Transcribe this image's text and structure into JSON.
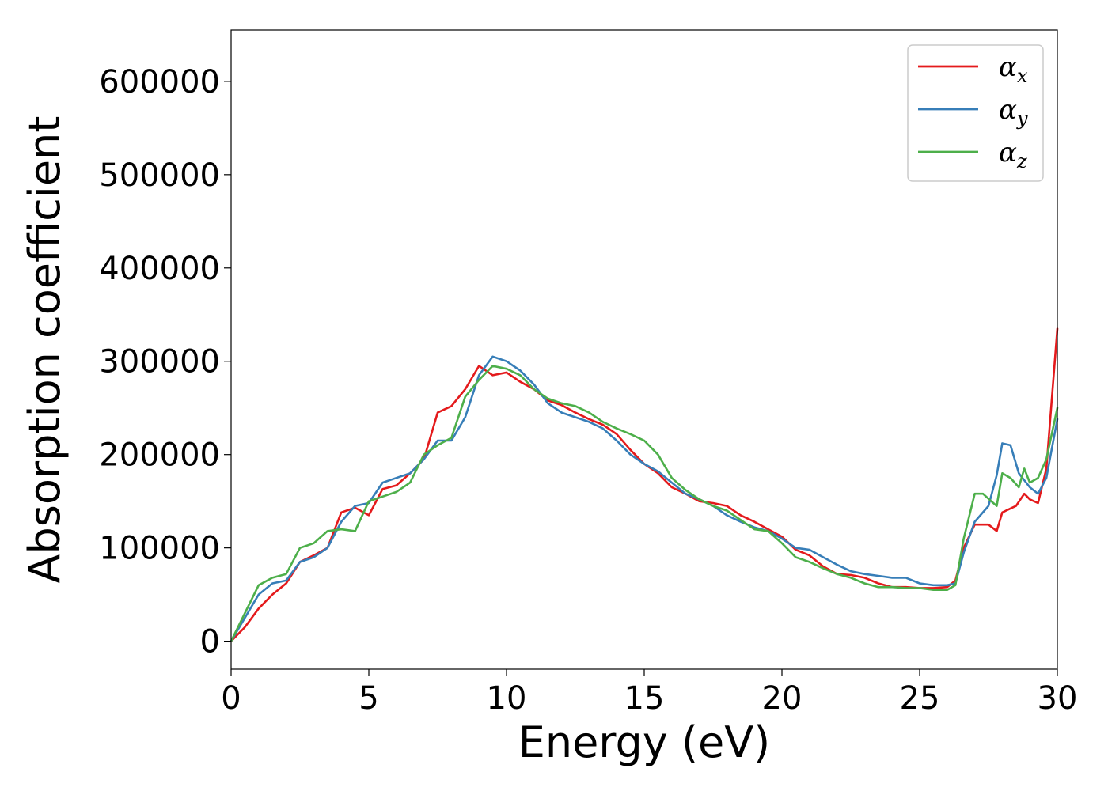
{
  "chart_data": {
    "type": "line",
    "title": "",
    "xlabel": "Energy (eV)",
    "ylabel": "Absorption coefficient",
    "xlim": [
      0,
      30
    ],
    "ylim": [
      -30000,
      655000
    ],
    "xticks": [
      0,
      5,
      10,
      15,
      20,
      25,
      30
    ],
    "xtick_labels": [
      "0",
      "5",
      "10",
      "15",
      "20",
      "25",
      "30"
    ],
    "yticks": [
      0,
      100000,
      200000,
      300000,
      400000,
      500000,
      600000
    ],
    "ytick_labels": [
      "0",
      "100000",
      "200000",
      "300000",
      "400000",
      "500000",
      "600000"
    ],
    "grid": false,
    "legend_position": "top-right",
    "series": [
      {
        "name": "α",
        "name_subscript": "x",
        "color": "#e41a1c",
        "x": [
          0,
          0.5,
          1,
          1.5,
          2,
          2.5,
          3,
          3.5,
          4,
          4.5,
          5,
          5.5,
          6,
          6.5,
          7,
          7.5,
          8,
          8.5,
          9,
          9.5,
          10,
          10.5,
          11,
          11.5,
          12,
          12.5,
          13,
          13.5,
          14,
          14.5,
          15,
          15.5,
          16,
          16.5,
          17,
          17.5,
          18,
          18.5,
          19,
          19.5,
          20,
          20.5,
          21,
          21.5,
          22,
          22.5,
          23,
          23.5,
          24,
          24.5,
          25,
          25.5,
          26,
          26.3,
          26.6,
          27,
          27.5,
          27.8,
          28,
          28.5,
          28.8,
          29,
          29.3,
          29.6,
          30
        ],
        "y": [
          0,
          15000,
          35000,
          50000,
          62000,
          85000,
          92000,
          100000,
          138000,
          143000,
          135000,
          163000,
          167000,
          180000,
          195000,
          245000,
          252000,
          270000,
          295000,
          285000,
          288000,
          278000,
          270000,
          258000,
          253000,
          245000,
          238000,
          232000,
          222000,
          205000,
          190000,
          180000,
          165000,
          158000,
          150000,
          148000,
          145000,
          135000,
          128000,
          120000,
          112000,
          98000,
          92000,
          80000,
          72000,
          71000,
          68000,
          62000,
          58000,
          58000,
          57000,
          57000,
          58000,
          65000,
          100000,
          125000,
          125000,
          118000,
          138000,
          145000,
          158000,
          152000,
          148000,
          185000,
          335000
        ]
      },
      {
        "name": "α",
        "name_subscript": "y",
        "color": "#377eb8",
        "x": [
          0,
          0.5,
          1,
          1.5,
          2,
          2.5,
          3,
          3.5,
          4,
          4.5,
          5,
          5.5,
          6,
          6.5,
          7,
          7.5,
          8,
          8.5,
          9,
          9.5,
          10,
          10.5,
          11,
          11.5,
          12,
          12.5,
          13,
          13.5,
          14,
          14.5,
          15,
          15.5,
          16,
          16.5,
          17,
          17.5,
          18,
          18.5,
          19,
          19.5,
          20,
          20.5,
          21,
          21.5,
          22,
          22.5,
          23,
          23.5,
          24,
          24.5,
          25,
          25.5,
          26,
          26.3,
          26.6,
          27,
          27.5,
          27.8,
          28,
          28.3,
          28.6,
          29,
          29.3,
          29.6,
          30
        ],
        "y": [
          0,
          25000,
          50000,
          62000,
          65000,
          85000,
          90000,
          100000,
          128000,
          145000,
          148000,
          170000,
          175000,
          180000,
          195000,
          215000,
          215000,
          240000,
          285000,
          305000,
          300000,
          290000,
          275000,
          255000,
          245000,
          240000,
          235000,
          228000,
          215000,
          200000,
          190000,
          182000,
          170000,
          158000,
          152000,
          145000,
          135000,
          128000,
          122000,
          118000,
          110000,
          100000,
          98000,
          90000,
          82000,
          75000,
          72000,
          70000,
          68000,
          68000,
          62000,
          60000,
          60000,
          62000,
          95000,
          128000,
          145000,
          178000,
          212000,
          210000,
          180000,
          165000,
          158000,
          175000,
          238000
        ]
      },
      {
        "name": "α",
        "name_subscript": "z",
        "color": "#4daf4a",
        "x": [
          0,
          0.5,
          1,
          1.5,
          2,
          2.5,
          3,
          3.5,
          4,
          4.5,
          5,
          5.5,
          6,
          6.5,
          7,
          7.5,
          8,
          8.5,
          9,
          9.5,
          10,
          10.5,
          11,
          11.5,
          12,
          12.5,
          13,
          13.5,
          14,
          14.5,
          15,
          15.5,
          16,
          16.5,
          17,
          17.5,
          18,
          18.5,
          19,
          19.5,
          20,
          20.5,
          21,
          21.5,
          22,
          22.5,
          23,
          23.5,
          24,
          24.5,
          25,
          25.5,
          26,
          26.3,
          26.6,
          27,
          27.3,
          27.6,
          27.8,
          28,
          28.3,
          28.6,
          28.8,
          29,
          29.3,
          29.6,
          30
        ],
        "y": [
          0,
          30000,
          60000,
          68000,
          72000,
          100000,
          105000,
          118000,
          120000,
          118000,
          150000,
          155000,
          160000,
          170000,
          200000,
          210000,
          218000,
          262000,
          280000,
          295000,
          292000,
          285000,
          270000,
          260000,
          255000,
          252000,
          245000,
          235000,
          228000,
          222000,
          215000,
          200000,
          175000,
          162000,
          152000,
          145000,
          140000,
          130000,
          120000,
          118000,
          105000,
          90000,
          85000,
          78000,
          72000,
          68000,
          62000,
          58000,
          58000,
          57000,
          57000,
          55000,
          55000,
          60000,
          110000,
          158000,
          158000,
          150000,
          145000,
          180000,
          175000,
          165000,
          185000,
          170000,
          175000,
          195000,
          250000
        ]
      }
    ]
  }
}
